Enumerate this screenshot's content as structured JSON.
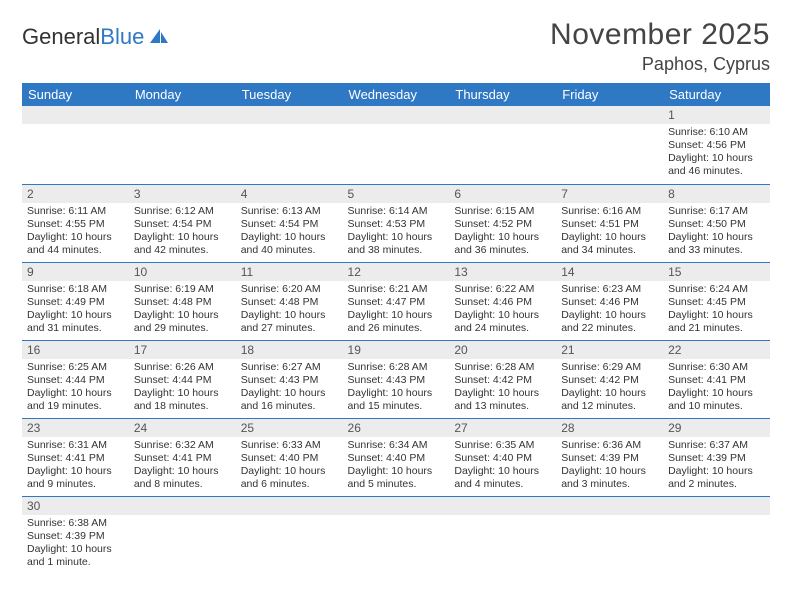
{
  "logo": {
    "text1": "General",
    "text2": "Blue"
  },
  "title": "November 2025",
  "location": "Paphos, Cyprus",
  "header_bg": "#2f78c4",
  "dow": [
    "Sunday",
    "Monday",
    "Tuesday",
    "Wednesday",
    "Thursday",
    "Friday",
    "Saturday"
  ],
  "weeks": [
    [
      null,
      null,
      null,
      null,
      null,
      null,
      {
        "n": "1",
        "sr": "6:10 AM",
        "ss": "4:56 PM",
        "dl": "10 hours and 46 minutes."
      }
    ],
    [
      {
        "n": "2",
        "sr": "6:11 AM",
        "ss": "4:55 PM",
        "dl": "10 hours and 44 minutes."
      },
      {
        "n": "3",
        "sr": "6:12 AM",
        "ss": "4:54 PM",
        "dl": "10 hours and 42 minutes."
      },
      {
        "n": "4",
        "sr": "6:13 AM",
        "ss": "4:54 PM",
        "dl": "10 hours and 40 minutes."
      },
      {
        "n": "5",
        "sr": "6:14 AM",
        "ss": "4:53 PM",
        "dl": "10 hours and 38 minutes."
      },
      {
        "n": "6",
        "sr": "6:15 AM",
        "ss": "4:52 PM",
        "dl": "10 hours and 36 minutes."
      },
      {
        "n": "7",
        "sr": "6:16 AM",
        "ss": "4:51 PM",
        "dl": "10 hours and 34 minutes."
      },
      {
        "n": "8",
        "sr": "6:17 AM",
        "ss": "4:50 PM",
        "dl": "10 hours and 33 minutes."
      }
    ],
    [
      {
        "n": "9",
        "sr": "6:18 AM",
        "ss": "4:49 PM",
        "dl": "10 hours and 31 minutes."
      },
      {
        "n": "10",
        "sr": "6:19 AM",
        "ss": "4:48 PM",
        "dl": "10 hours and 29 minutes."
      },
      {
        "n": "11",
        "sr": "6:20 AM",
        "ss": "4:48 PM",
        "dl": "10 hours and 27 minutes."
      },
      {
        "n": "12",
        "sr": "6:21 AM",
        "ss": "4:47 PM",
        "dl": "10 hours and 26 minutes."
      },
      {
        "n": "13",
        "sr": "6:22 AM",
        "ss": "4:46 PM",
        "dl": "10 hours and 24 minutes."
      },
      {
        "n": "14",
        "sr": "6:23 AM",
        "ss": "4:46 PM",
        "dl": "10 hours and 22 minutes."
      },
      {
        "n": "15",
        "sr": "6:24 AM",
        "ss": "4:45 PM",
        "dl": "10 hours and 21 minutes."
      }
    ],
    [
      {
        "n": "16",
        "sr": "6:25 AM",
        "ss": "4:44 PM",
        "dl": "10 hours and 19 minutes."
      },
      {
        "n": "17",
        "sr": "6:26 AM",
        "ss": "4:44 PM",
        "dl": "10 hours and 18 minutes."
      },
      {
        "n": "18",
        "sr": "6:27 AM",
        "ss": "4:43 PM",
        "dl": "10 hours and 16 minutes."
      },
      {
        "n": "19",
        "sr": "6:28 AM",
        "ss": "4:43 PM",
        "dl": "10 hours and 15 minutes."
      },
      {
        "n": "20",
        "sr": "6:28 AM",
        "ss": "4:42 PM",
        "dl": "10 hours and 13 minutes."
      },
      {
        "n": "21",
        "sr": "6:29 AM",
        "ss": "4:42 PM",
        "dl": "10 hours and 12 minutes."
      },
      {
        "n": "22",
        "sr": "6:30 AM",
        "ss": "4:41 PM",
        "dl": "10 hours and 10 minutes."
      }
    ],
    [
      {
        "n": "23",
        "sr": "6:31 AM",
        "ss": "4:41 PM",
        "dl": "10 hours and 9 minutes."
      },
      {
        "n": "24",
        "sr": "6:32 AM",
        "ss": "4:41 PM",
        "dl": "10 hours and 8 minutes."
      },
      {
        "n": "25",
        "sr": "6:33 AM",
        "ss": "4:40 PM",
        "dl": "10 hours and 6 minutes."
      },
      {
        "n": "26",
        "sr": "6:34 AM",
        "ss": "4:40 PM",
        "dl": "10 hours and 5 minutes."
      },
      {
        "n": "27",
        "sr": "6:35 AM",
        "ss": "4:40 PM",
        "dl": "10 hours and 4 minutes."
      },
      {
        "n": "28",
        "sr": "6:36 AM",
        "ss": "4:39 PM",
        "dl": "10 hours and 3 minutes."
      },
      {
        "n": "29",
        "sr": "6:37 AM",
        "ss": "4:39 PM",
        "dl": "10 hours and 2 minutes."
      }
    ],
    [
      {
        "n": "30",
        "sr": "6:38 AM",
        "ss": "4:39 PM",
        "dl": "10 hours and 1 minute."
      },
      null,
      null,
      null,
      null,
      null,
      null
    ]
  ],
  "labels": {
    "sunrise": "Sunrise: ",
    "sunset": "Sunset: ",
    "daylight": "Daylight: "
  }
}
